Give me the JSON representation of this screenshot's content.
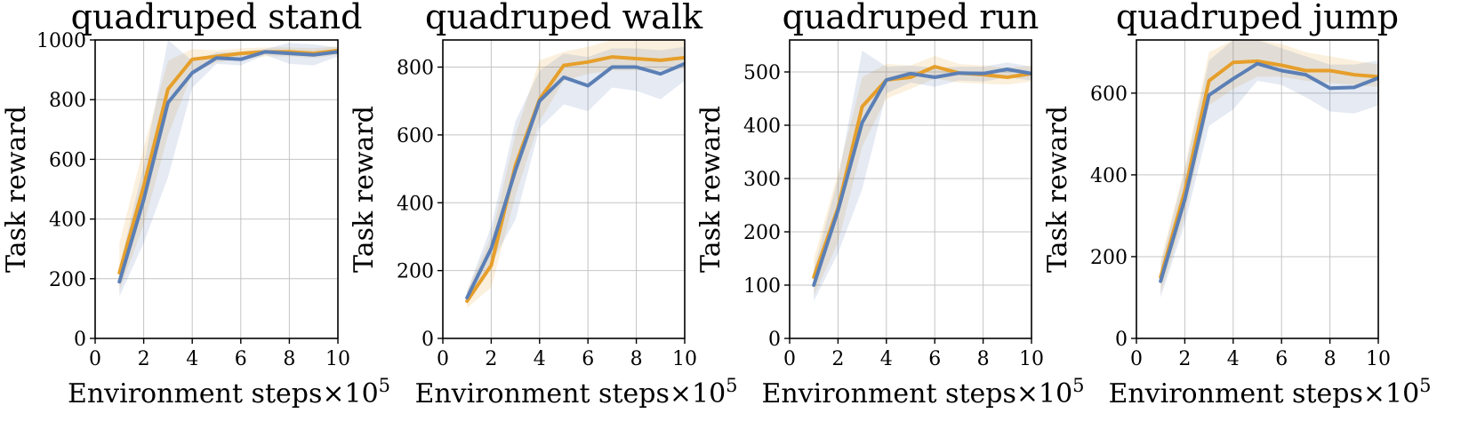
{
  "figure": {
    "xlabel": "Environment steps",
    "xlabel_multiplier": "×10",
    "xlabel_exponent": "5",
    "ylabel": "Task reward"
  },
  "colors": {
    "orange": "#E69F2B",
    "blue": "#5B7FB5",
    "grid": "#C4C4C4",
    "axis": "#000000"
  },
  "chart_data": [
    {
      "type": "line",
      "title": "quadruped stand",
      "xlabel": "Environment steps ×10^5",
      "ylabel": "Task reward",
      "xlim": [
        0,
        10
      ],
      "ylim": [
        0,
        1000
      ],
      "xticks": [
        0,
        2,
        4,
        6,
        8,
        10
      ],
      "yticks": [
        0,
        200,
        400,
        600,
        800,
        1000
      ],
      "grid": true,
      "x": [
        1,
        2,
        3,
        4,
        5,
        6,
        7,
        8,
        9,
        10
      ],
      "series": [
        {
          "color": "orange",
          "values": [
            220,
            510,
            835,
            935,
            945,
            955,
            960,
            960,
            955,
            965
          ],
          "lower": [
            160,
            380,
            680,
            890,
            925,
            935,
            945,
            945,
            940,
            950
          ],
          "upper": [
            320,
            640,
            930,
            970,
            965,
            972,
            975,
            975,
            972,
            978
          ]
        },
        {
          "color": "blue",
          "values": [
            190,
            465,
            790,
            890,
            940,
            935,
            960,
            955,
            950,
            960
          ],
          "lower": [
            140,
            320,
            540,
            840,
            920,
            915,
            950,
            920,
            915,
            945
          ],
          "upper": [
            240,
            580,
            1000,
            930,
            958,
            960,
            970,
            990,
            985,
            975
          ]
        }
      ]
    },
    {
      "type": "line",
      "title": "quadruped walk",
      "xlabel": "Environment steps ×10^5",
      "ylabel": "Task reward",
      "xlim": [
        0,
        10
      ],
      "ylim": [
        0,
        880
      ],
      "xticks": [
        0,
        2,
        4,
        6,
        8,
        10
      ],
      "yticks": [
        0,
        200,
        400,
        600,
        800
      ],
      "grid": true,
      "x": [
        1,
        2,
        3,
        4,
        5,
        6,
        7,
        8,
        9,
        10
      ],
      "series": [
        {
          "color": "orange",
          "values": [
            110,
            215,
            510,
            705,
            805,
            815,
            830,
            825,
            820,
            828
          ],
          "lower": [
            90,
            150,
            420,
            640,
            760,
            780,
            790,
            790,
            790,
            795
          ],
          "upper": [
            140,
            300,
            600,
            820,
            845,
            860,
            880,
            880,
            880,
            880
          ]
        },
        {
          "color": "blue",
          "values": [
            120,
            265,
            495,
            700,
            770,
            745,
            800,
            800,
            780,
            810
          ],
          "lower": [
            100,
            220,
            350,
            620,
            690,
            670,
            740,
            730,
            705,
            760
          ],
          "upper": [
            140,
            330,
            640,
            790,
            840,
            830,
            855,
            855,
            850,
            860
          ]
        }
      ]
    },
    {
      "type": "line",
      "title": "quadruped run",
      "xlabel": "Environment steps ×10^5",
      "ylabel": "Task reward",
      "xlim": [
        0,
        10
      ],
      "ylim": [
        0,
        560
      ],
      "xticks": [
        0,
        2,
        4,
        6,
        8,
        10
      ],
      "yticks": [
        0,
        100,
        200,
        300,
        400,
        500
      ],
      "grid": true,
      "x": [
        1,
        2,
        3,
        4,
        5,
        6,
        7,
        8,
        9,
        10
      ],
      "series": [
        {
          "color": "orange",
          "values": [
            115,
            245,
            435,
            485,
            490,
            510,
            498,
            495,
            490,
            497
          ],
          "lower": [
            80,
            180,
            360,
            450,
            468,
            488,
            480,
            478,
            476,
            482
          ],
          "upper": [
            150,
            310,
            490,
            515,
            512,
            530,
            515,
            512,
            508,
            512
          ]
        },
        {
          "color": "blue",
          "values": [
            100,
            240,
            405,
            485,
            497,
            490,
            498,
            497,
            505,
            497
          ],
          "lower": [
            70,
            160,
            280,
            460,
            480,
            472,
            484,
            482,
            490,
            484
          ],
          "upper": [
            130,
            300,
            540,
            510,
            512,
            508,
            510,
            510,
            518,
            510
          ]
        }
      ]
    },
    {
      "type": "line",
      "title": "quadruped jump",
      "xlabel": "Environment steps ×10^5",
      "ylabel": "Task reward",
      "xlim": [
        0,
        10
      ],
      "ylim": [
        0,
        730
      ],
      "xticks": [
        0,
        2,
        4,
        6,
        8,
        10
      ],
      "yticks": [
        0,
        200,
        400,
        600
      ],
      "grid": true,
      "x": [
        1,
        2,
        3,
        4,
        5,
        6,
        7,
        8,
        9,
        10
      ],
      "series": [
        {
          "color": "orange",
          "values": [
            150,
            360,
            630,
            675,
            678,
            668,
            655,
            655,
            645,
            640
          ],
          "lower": [
            110,
            300,
            570,
            610,
            640,
            640,
            630,
            625,
            620,
            615
          ],
          "upper": [
            190,
            420,
            700,
            730,
            730,
            720,
            700,
            690,
            680,
            670
          ]
        },
        {
          "color": "blue",
          "values": [
            140,
            340,
            595,
            635,
            672,
            655,
            645,
            612,
            614,
            637
          ],
          "lower": [
            100,
            280,
            520,
            560,
            630,
            620,
            590,
            555,
            550,
            570
          ],
          "upper": [
            180,
            410,
            680,
            730,
            730,
            710,
            690,
            670,
            670,
            680
          ]
        }
      ]
    }
  ]
}
